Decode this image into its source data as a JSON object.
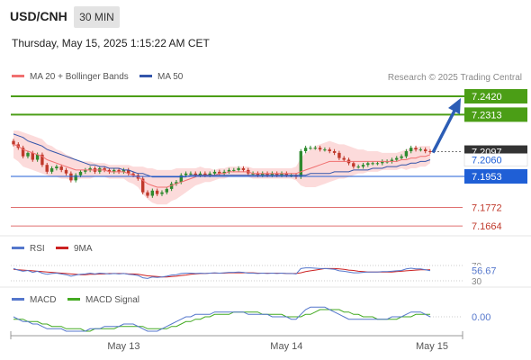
{
  "header": {
    "symbol": "USD/CNH",
    "timeframe": "30 MIN",
    "datetime": "Thursday, May 15, 2025 1:15:22 AM CET"
  },
  "legend": {
    "ma20_label": "MA 20 + Bollinger Bands",
    "ma50_label": "MA 50",
    "credit": "Research © 2025 Trading Central",
    "rsi_label": "RSI",
    "rsi_ma_label": "9MA",
    "macd_label": "MACD",
    "macd_signal_label": "MACD Signal"
  },
  "colors": {
    "ma20": "#f07070",
    "ma50": "#3355aa",
    "bands": "#fbd5d5",
    "up": "#2f8a2f",
    "down": "#c0392b",
    "target_line": "#4b9e16",
    "pivot": "#1f5fd6",
    "support": "#e07070",
    "last": "#333333",
    "arrow": "#2c5db5",
    "rsi": "#5577cc",
    "rsi_ma": "#cc2222",
    "macd": "#5577cc",
    "macd_signal": "#44aa22"
  },
  "chart_data": [
    {
      "type": "candlestick",
      "title": "USD/CNH",
      "x_labels": [
        "May 13",
        "May 14",
        "May 15"
      ],
      "ylim": [
        7.155,
        7.255
      ],
      "levels": [
        {
          "value": 7.242,
          "label": "7.2420",
          "kind": "resistance"
        },
        {
          "value": 7.2313,
          "label": "7.2313",
          "kind": "resistance"
        },
        {
          "value": 7.2097,
          "label": "7.2097",
          "kind": "last"
        },
        {
          "value": 7.206,
          "label": "7.2060",
          "kind": "current"
        },
        {
          "value": 7.1953,
          "label": "7.1953",
          "kind": "pivot"
        },
        {
          "value": 7.1772,
          "label": "7.1772",
          "kind": "support"
        },
        {
          "value": 7.1664,
          "label": "7.1664",
          "kind": "support"
        }
      ],
      "forecast_target": 7.242,
      "closes": [
        7.214,
        7.212,
        7.207,
        7.209,
        7.205,
        7.208,
        7.202,
        7.198,
        7.2,
        7.201,
        7.199,
        7.197,
        7.193,
        7.196,
        7.198,
        7.199,
        7.2,
        7.198,
        7.2,
        7.199,
        7.198,
        7.199,
        7.198,
        7.199,
        7.197,
        7.196,
        7.194,
        7.186,
        7.184,
        7.187,
        7.185,
        7.186,
        7.188,
        7.191,
        7.192,
        7.196,
        7.197,
        7.197,
        7.196,
        7.197,
        7.196,
        7.197,
        7.198,
        7.197,
        7.198,
        7.199,
        7.199,
        7.2,
        7.199,
        7.197,
        7.197,
        7.196,
        7.197,
        7.196,
        7.197,
        7.196,
        7.197,
        7.196,
        7.196,
        7.195,
        7.21,
        7.212,
        7.212,
        7.212,
        7.211,
        7.211,
        7.21,
        7.209,
        7.206,
        7.205,
        7.203,
        7.201,
        7.201,
        7.202,
        7.203,
        7.203,
        7.203,
        7.204,
        7.204,
        7.205,
        7.206,
        7.207,
        7.21,
        7.212,
        7.211,
        7.211,
        7.21,
        7.2097
      ],
      "ma20": [
        7.214,
        7.213,
        7.211,
        7.21,
        7.209,
        7.208,
        7.207,
        7.205,
        7.204,
        7.203,
        7.202,
        7.201,
        7.2,
        7.199,
        7.199,
        7.199,
        7.199,
        7.199,
        7.199,
        7.199,
        7.198,
        7.198,
        7.198,
        7.198,
        7.197,
        7.196,
        7.195,
        7.193,
        7.191,
        7.19,
        7.189,
        7.189,
        7.189,
        7.19,
        7.191,
        7.192,
        7.193,
        7.194,
        7.195,
        7.196,
        7.196,
        7.196,
        7.196,
        7.197,
        7.197,
        7.198,
        7.198,
        7.198,
        7.198,
        7.198,
        7.197,
        7.197,
        7.197,
        7.197,
        7.197,
        7.197,
        7.197,
        7.197,
        7.197,
        7.197,
        7.198,
        7.199,
        7.2,
        7.201,
        7.202,
        7.203,
        7.204,
        7.204,
        7.204,
        7.204,
        7.204,
        7.204,
        7.204,
        7.204,
        7.204,
        7.204,
        7.204,
        7.204,
        7.204,
        7.204,
        7.204,
        7.205,
        7.205,
        7.206,
        7.206,
        7.207,
        7.207,
        7.208
      ],
      "ma50": [
        7.22,
        7.219,
        7.218,
        7.216,
        7.215,
        7.214,
        7.213,
        7.211,
        7.21,
        7.209,
        7.208,
        7.207,
        7.206,
        7.205,
        7.204,
        7.203,
        7.202,
        7.202,
        7.201,
        7.201,
        7.2,
        7.2,
        7.2,
        7.199,
        7.199,
        7.198,
        7.197,
        7.197,
        7.196,
        7.195,
        7.195,
        7.195,
        7.195,
        7.195,
        7.195,
        7.195,
        7.195,
        7.196,
        7.196,
        7.196,
        7.196,
        7.196,
        7.196,
        7.196,
        7.196,
        7.196,
        7.196,
        7.196,
        7.196,
        7.196,
        7.196,
        7.196,
        7.196,
        7.196,
        7.196,
        7.196,
        7.196,
        7.196,
        7.196,
        7.196,
        7.196,
        7.196,
        7.197,
        7.197,
        7.197,
        7.197,
        7.197,
        7.198,
        7.198,
        7.198,
        7.198,
        7.199,
        7.199,
        7.199,
        7.199,
        7.2,
        7.2,
        7.2,
        7.201,
        7.201,
        7.201,
        7.202,
        7.202,
        7.203,
        7.203,
        7.204,
        7.204,
        7.205
      ],
      "band_width": [
        0.008,
        0.009,
        0.01,
        0.01,
        0.01,
        0.01,
        0.01,
        0.009,
        0.009,
        0.008,
        0.008,
        0.007,
        0.007,
        0.006,
        0.005,
        0.005,
        0.005,
        0.004,
        0.004,
        0.004,
        0.004,
        0.004,
        0.004,
        0.004,
        0.005,
        0.005,
        0.006,
        0.008,
        0.009,
        0.01,
        0.01,
        0.01,
        0.01,
        0.009,
        0.009,
        0.008,
        0.007,
        0.006,
        0.005,
        0.005,
        0.004,
        0.004,
        0.003,
        0.003,
        0.003,
        0.003,
        0.003,
        0.003,
        0.003,
        0.003,
        0.003,
        0.003,
        0.003,
        0.003,
        0.003,
        0.003,
        0.003,
        0.003,
        0.003,
        0.004,
        0.008,
        0.01,
        0.011,
        0.012,
        0.012,
        0.012,
        0.012,
        0.011,
        0.01,
        0.01,
        0.009,
        0.008,
        0.007,
        0.007,
        0.006,
        0.006,
        0.006,
        0.005,
        0.005,
        0.005,
        0.005,
        0.005,
        0.006,
        0.006,
        0.006,
        0.006,
        0.006,
        0.005
      ]
    },
    {
      "type": "line",
      "title": "RSI",
      "ylim": [
        30,
        70
      ],
      "ticks": [
        "70",
        "30"
      ],
      "last_value": "56.67",
      "series": [
        {
          "name": "RSI",
          "values": [
            62,
            58,
            55,
            57,
            52,
            55,
            50,
            47,
            49,
            50,
            48,
            46,
            42,
            45,
            47,
            48,
            50,
            48,
            50,
            49,
            48,
            49,
            48,
            49,
            47,
            46,
            44,
            38,
            36,
            40,
            39,
            40,
            42,
            45,
            46,
            49,
            50,
            50,
            49,
            50,
            49,
            50,
            51,
            50,
            51,
            52,
            52,
            53,
            52,
            50,
            50,
            49,
            50,
            49,
            50,
            49,
            50,
            49,
            49,
            48,
            62,
            64,
            64,
            63,
            62,
            62,
            61,
            60,
            56,
            55,
            53,
            51,
            51,
            52,
            53,
            53,
            53,
            54,
            54,
            55,
            56,
            57,
            61,
            63,
            61,
            61,
            59,
            56.67
          ]
        },
        {
          "name": "9MA",
          "values": [
            60,
            59,
            58,
            57,
            56,
            55,
            54,
            53,
            52,
            51,
            50,
            49,
            48,
            47,
            46,
            46,
            47,
            47,
            48,
            48,
            49,
            49,
            49,
            49,
            48,
            48,
            47,
            45,
            43,
            42,
            41,
            40,
            40,
            41,
            42,
            44,
            45,
            47,
            48,
            49,
            49,
            50,
            50,
            50,
            50,
            51,
            51,
            51,
            51,
            51,
            51,
            50,
            50,
            50,
            50,
            50,
            50,
            49,
            49,
            49,
            51,
            54,
            56,
            58,
            60,
            62,
            62,
            62,
            61,
            60,
            58,
            57,
            55,
            54,
            53,
            53,
            53,
            53,
            53,
            53,
            54,
            55,
            56,
            57,
            58,
            59,
            59,
            59
          ]
        }
      ]
    },
    {
      "type": "line",
      "title": "MACD",
      "last_value": "0.00",
      "ylim": [
        -0.008,
        0.006
      ],
      "series": [
        {
          "name": "MACD",
          "values": [
            0.0,
            -0.001,
            -0.002,
            -0.002,
            -0.003,
            -0.003,
            -0.004,
            -0.005,
            -0.005,
            -0.005,
            -0.005,
            -0.006,
            -0.006,
            -0.006,
            -0.006,
            -0.006,
            -0.005,
            -0.005,
            -0.005,
            -0.004,
            -0.004,
            -0.004,
            -0.004,
            -0.003,
            -0.003,
            -0.003,
            -0.004,
            -0.005,
            -0.006,
            -0.006,
            -0.006,
            -0.005,
            -0.004,
            -0.003,
            -0.002,
            -0.001,
            0.0,
            0.0,
            0.001,
            0.001,
            0.001,
            0.001,
            0.002,
            0.002,
            0.002,
            0.002,
            0.002,
            0.002,
            0.002,
            0.001,
            0.001,
            0.001,
            0.001,
            0.001,
            0.0,
            0.0,
            0.0,
            0.0,
            -0.001,
            -0.001,
            0.001,
            0.003,
            0.004,
            0.004,
            0.004,
            0.004,
            0.003,
            0.002,
            0.001,
            0.0,
            -0.001,
            -0.001,
            -0.001,
            -0.001,
            -0.001,
            -0.001,
            -0.001,
            -0.001,
            -0.001,
            0.0,
            0.0,
            0.0,
            0.001,
            0.002,
            0.002,
            0.002,
            0.001,
            0.0
          ]
        },
        {
          "name": "MACD Signal",
          "values": [
            -0.001,
            -0.001,
            -0.001,
            -0.002,
            -0.002,
            -0.002,
            -0.003,
            -0.003,
            -0.004,
            -0.004,
            -0.004,
            -0.005,
            -0.005,
            -0.005,
            -0.005,
            -0.006,
            -0.006,
            -0.005,
            -0.005,
            -0.005,
            -0.005,
            -0.005,
            -0.004,
            -0.004,
            -0.004,
            -0.004,
            -0.004,
            -0.004,
            -0.005,
            -0.005,
            -0.005,
            -0.005,
            -0.005,
            -0.004,
            -0.004,
            -0.003,
            -0.002,
            -0.002,
            -0.001,
            -0.001,
            0.0,
            0.0,
            0.001,
            0.001,
            0.001,
            0.001,
            0.002,
            0.002,
            0.002,
            0.002,
            0.002,
            0.002,
            0.001,
            0.001,
            0.001,
            0.001,
            0.001,
            0.0,
            0.0,
            0.0,
            0.0,
            0.001,
            0.001,
            0.002,
            0.003,
            0.003,
            0.003,
            0.003,
            0.003,
            0.002,
            0.002,
            0.001,
            0.001,
            0.0,
            0.0,
            0.0,
            -0.001,
            -0.001,
            -0.001,
            -0.001,
            -0.001,
            0.0,
            0.0,
            0.0,
            0.001,
            0.001,
            0.001,
            0.001
          ]
        }
      ]
    }
  ]
}
